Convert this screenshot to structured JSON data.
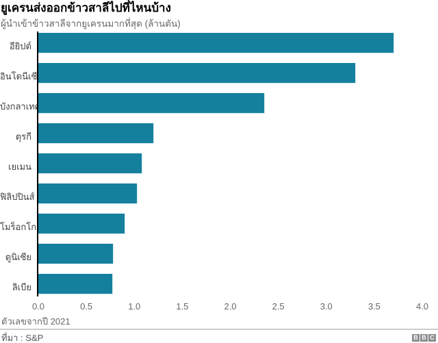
{
  "header": {
    "title": "ยูเครนส่งออกข้าวสาลีไปที่ไหนบ้าง",
    "subtitle": "ผู้นำเข้าข้าวสาลีจากยูเครนมากที่สุด (ล้านตัน)"
  },
  "chart_data": {
    "type": "bar",
    "orientation": "horizontal",
    "title": "ยูเครนส่งออกข้าวสาลีไปที่ไหนบ้าง",
    "subtitle": "ผู้นำเข้าข้าวสาลีจากยูเครนมากที่สุด (ล้านตัน)",
    "categories": [
      "อียิปต์",
      "อินโดนีเซีย",
      "บังกลาเทศ",
      "ตุรกี",
      "เยเมน",
      "ฟิลิปปินส์",
      "โมร็อกโก",
      "ตูนิเซีย",
      "ลิเบีย"
    ],
    "values": [
      3.7,
      3.3,
      2.35,
      1.2,
      1.08,
      1.03,
      0.9,
      0.78,
      0.77
    ],
    "xlim": [
      0,
      4
    ],
    "x_ticks": [
      "0.0",
      "0.5",
      "1.0",
      "1.5",
      "2.0",
      "2.5",
      "3.0",
      "3.5",
      "4.0"
    ],
    "grid": false,
    "legend": "none",
    "bar_color": "#15809E",
    "axis_color": "#000000"
  },
  "footer": {
    "note": "ตัวเลขจากปี 2021",
    "source": "ที่มา : S&P",
    "logo_letters": [
      "B",
      "B",
      "C"
    ]
  },
  "colors": {
    "bar": "#15809E",
    "divider": "#cccccc",
    "muted_text": "#666666",
    "label_text": "#404040"
  }
}
